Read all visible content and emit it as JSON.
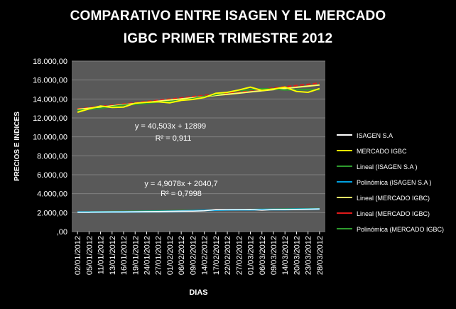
{
  "chart_data": {
    "type": "line",
    "title_lines": [
      "COMPARATIVO ENTRE ISAGEN Y EL MERCADO",
      "IGBC PRIMER TRIMESTRE 2012"
    ],
    "xlabel": "DIAS",
    "ylabel": "PRECIOS  E  INDICES",
    "ylim": [
      0,
      18000
    ],
    "y_ticks": [
      ",00",
      "2.000,00",
      "4.000,00",
      "6.000,00",
      "8.000,00",
      "10.000,00",
      "12.000,00",
      "14.000,00",
      "16.000,00",
      "18.000,00"
    ],
    "categories": [
      "02/01/2012",
      "05/01/2012",
      "11/01/2012",
      "13/01/2012",
      "16/01/2012",
      "19/01/2012",
      "24/01/2012",
      "27/01/2012",
      "01/02/2012",
      "06/02/2012",
      "09/02/2012",
      "14/02/2012",
      "17/02/2012",
      "22/02/2012",
      "27/02/2012",
      "01/03/2012",
      "06/03/2012",
      "09/03/2012",
      "14/03/2012",
      "20/03/2012",
      "23/03/2012",
      "28/03/2012"
    ],
    "series": [
      {
        "name": "ISAGEN S.A",
        "color": "#ffffff",
        "values": [
          2050,
          2050,
          2060,
          2070,
          2070,
          2090,
          2110,
          2120,
          2140,
          2150,
          2160,
          2200,
          2320,
          2310,
          2320,
          2330,
          2260,
          2330,
          2340,
          2350,
          2360,
          2390
        ]
      },
      {
        "name": "MERCADO IGBC",
        "color": "#ffff00",
        "values": [
          12600,
          12950,
          13250,
          13100,
          13150,
          13550,
          13650,
          13700,
          13600,
          13850,
          13950,
          14150,
          14600,
          14700,
          14950,
          15250,
          14900,
          15050,
          15250,
          14800,
          14700,
          15100
        ]
      }
    ],
    "trendlines": [
      {
        "name": "Lineal (ISAGEN S.A )",
        "color": "#2e9c2e",
        "kind": "linear",
        "slope_per_category": 17.48,
        "intercept": 2061
      },
      {
        "name": "Polinómica (ISAGEN S.A )",
        "color": "#00a0e0",
        "kind": "poly"
      },
      {
        "name": "Lineal (MERCADO IGBC)",
        "color": "#ffff66",
        "kind": "linear",
        "slope_per_category": 123,
        "intercept": 12899
      },
      {
        "name": "Lineal (MERCADO IGBC)",
        "color": "#e01a1a",
        "kind": "linear",
        "slope_per_category": 130,
        "intercept": 12950
      },
      {
        "name": "Polinómica (MERCADO IGBC)",
        "color": "#2e9c2e",
        "kind": "poly"
      }
    ],
    "annotations": [
      {
        "eq": "y = 40,503x + 12899",
        "r2": "R² = 0,911"
      },
      {
        "eq": "y = 4,9078x + 2040,7",
        "r2": "R² = 0,7998"
      }
    ],
    "legend_position": "right",
    "plot_background": "#595959",
    "grid": true
  }
}
